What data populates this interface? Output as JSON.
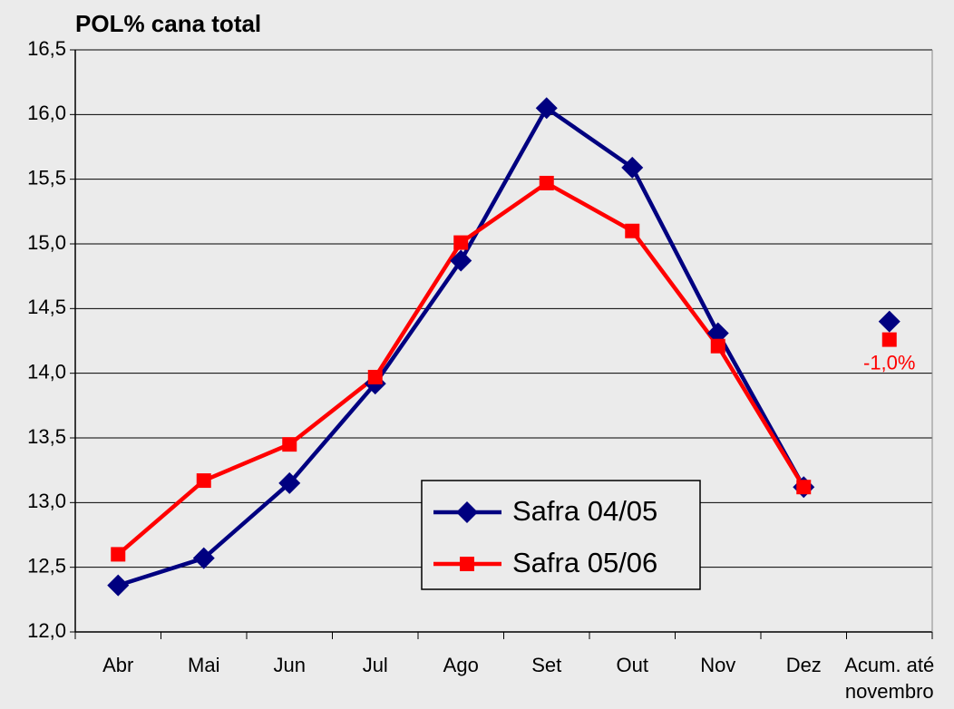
{
  "chart_data": {
    "type": "line",
    "title": "POL% cana total",
    "categories": [
      "Abr",
      "Mai",
      "Jun",
      "Jul",
      "Ago",
      "Set",
      "Out",
      "Nov",
      "Dez",
      "Acum. até novembro"
    ],
    "series": [
      {
        "name": "Safra 04/05",
        "color": "#000080",
        "marker": "diamond",
        "values": [
          12.36,
          12.57,
          13.15,
          13.92,
          14.87,
          16.05,
          15.59,
          14.31,
          13.12,
          14.4
        ]
      },
      {
        "name": "Safra 05/06",
        "color": "#ff0000",
        "marker": "square",
        "values": [
          12.6,
          13.17,
          13.45,
          13.97,
          15.01,
          15.47,
          15.1,
          14.21,
          13.12,
          14.26
        ]
      }
    ],
    "separate_last": true,
    "annotation": {
      "text": "-1,0%",
      "color": "#ff0000"
    },
    "ylim": [
      12.0,
      16.5
    ],
    "yticks": [
      {
        "value": 12.0,
        "label": "12,0"
      },
      {
        "value": 12.5,
        "label": "12,5"
      },
      {
        "value": 13.0,
        "label": "13,0"
      },
      {
        "value": 13.5,
        "label": "13,5"
      },
      {
        "value": 14.0,
        "label": "14,0"
      },
      {
        "value": 14.5,
        "label": "14,5"
      },
      {
        "value": 15.0,
        "label": "15,0"
      },
      {
        "value": 15.5,
        "label": "15,5"
      },
      {
        "value": 16.0,
        "label": "16,0"
      },
      {
        "value": 16.5,
        "label": "16,5"
      }
    ],
    "grid": true
  }
}
